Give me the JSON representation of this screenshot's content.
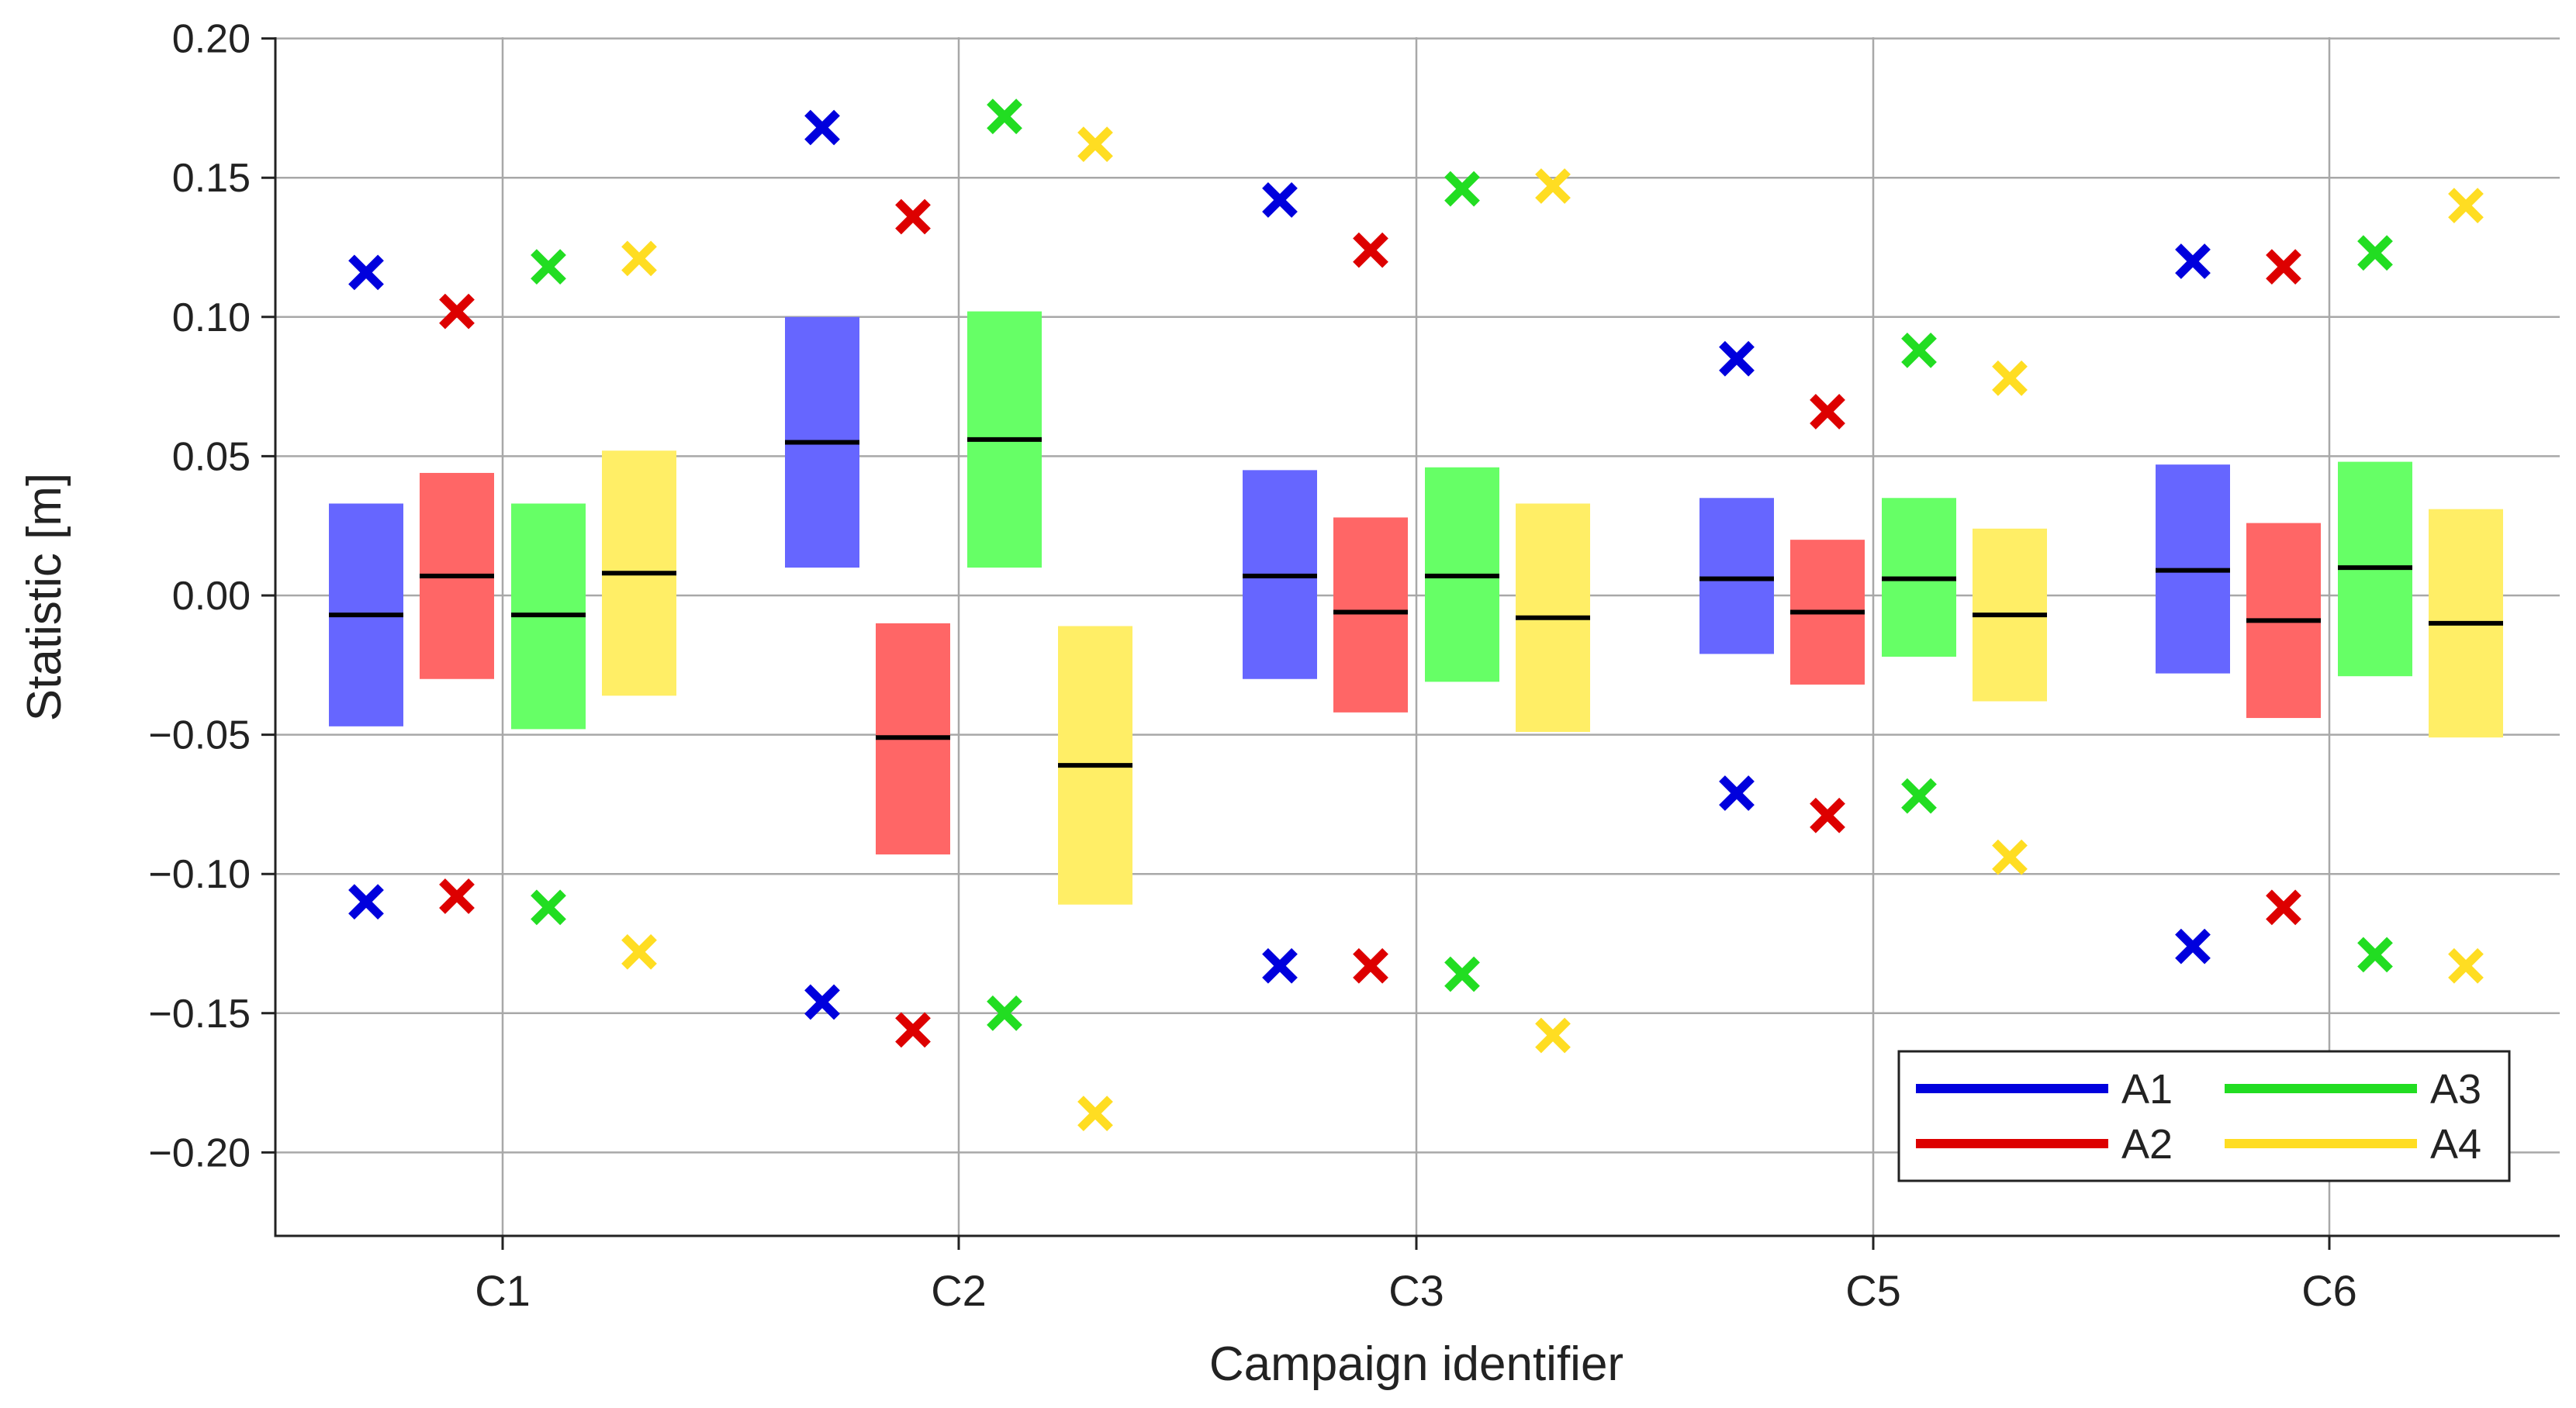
{
  "chart_data": {
    "type": "box-range",
    "title": "",
    "xlabel": "Campaign identifier",
    "ylabel": "Statistic [m]",
    "ylim": [
      -0.23,
      0.2
    ],
    "yticks": [
      0.2,
      0.15,
      0.1,
      0.05,
      0.0,
      -0.05,
      -0.1,
      -0.15,
      -0.2
    ],
    "ytick_labels": [
      "0.20",
      "0.15",
      "0.10",
      "0.05",
      "0.00",
      "−0.05",
      "−0.10",
      "−0.15",
      "−0.20"
    ],
    "categories": [
      "C1",
      "C2",
      "C3",
      "C5",
      "C6"
    ],
    "grid": true,
    "legend_position": "bottom-right",
    "series": [
      {
        "name": "A1",
        "color": "#0000dd",
        "fill_color": "#6666ff",
        "box_low": [
          -0.047,
          0.01,
          -0.03,
          -0.021,
          -0.028
        ],
        "box_high": [
          0.033,
          0.1,
          0.045,
          0.035,
          0.047
        ],
        "median": [
          -0.007,
          0.055,
          0.007,
          0.006,
          0.009
        ],
        "max": [
          0.116,
          0.168,
          0.142,
          0.085,
          0.12
        ],
        "min": [
          -0.11,
          -0.146,
          -0.133,
          -0.071,
          -0.126
        ]
      },
      {
        "name": "A2",
        "color": "#dd0000",
        "fill_color": "#ff6666",
        "box_low": [
          -0.03,
          -0.093,
          -0.042,
          -0.032,
          -0.044
        ],
        "box_high": [
          0.044,
          -0.01,
          0.028,
          0.02,
          0.026
        ],
        "median": [
          0.007,
          -0.051,
          -0.006,
          -0.006,
          -0.009
        ],
        "max": [
          0.102,
          0.136,
          0.124,
          0.066,
          0.118
        ],
        "min": [
          -0.108,
          -0.156,
          -0.133,
          -0.079,
          -0.112
        ]
      },
      {
        "name": "A3",
        "color": "#22dd22",
        "fill_color": "#66ff66",
        "box_low": [
          -0.048,
          0.01,
          -0.031,
          -0.022,
          -0.029
        ],
        "box_high": [
          0.033,
          0.102,
          0.046,
          0.035,
          0.048
        ],
        "median": [
          -0.007,
          0.056,
          0.007,
          0.006,
          0.01
        ],
        "max": [
          0.118,
          0.172,
          0.146,
          0.088,
          0.123
        ],
        "min": [
          -0.112,
          -0.15,
          -0.136,
          -0.072,
          -0.129
        ]
      },
      {
        "name": "A4",
        "color": "#ffdd22",
        "fill_color": "#ffee66",
        "box_low": [
          -0.036,
          -0.111,
          -0.049,
          -0.038,
          -0.051
        ],
        "box_high": [
          0.052,
          -0.011,
          0.033,
          0.024,
          0.031
        ],
        "median": [
          0.008,
          -0.061,
          -0.008,
          -0.007,
          -0.01
        ],
        "max": [
          0.121,
          0.162,
          0.147,
          0.078,
          0.14
        ],
        "min": [
          -0.128,
          -0.186,
          -0.158,
          -0.094,
          -0.133
        ]
      }
    ]
  }
}
